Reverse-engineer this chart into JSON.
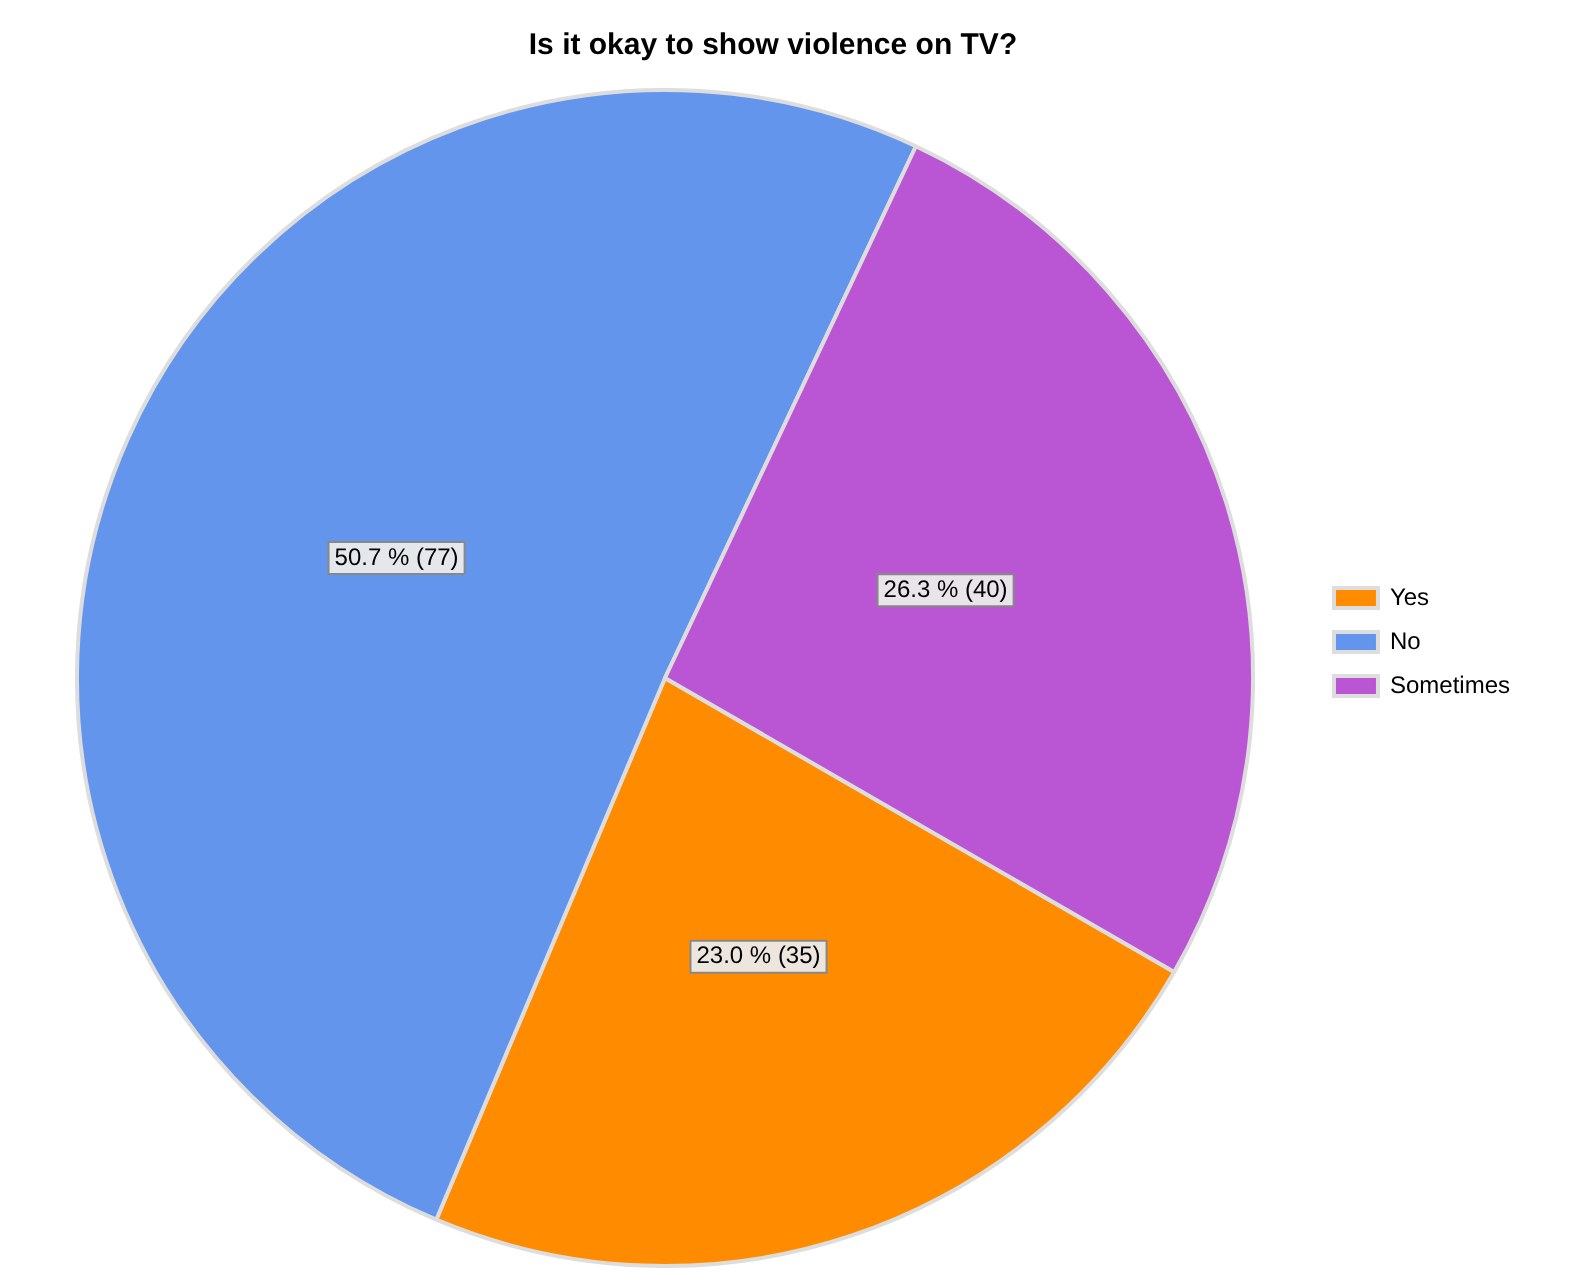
{
  "chart_data": {
    "type": "pie",
    "title": "Is it okay to show violence on TV?",
    "categories": [
      "Yes",
      "No",
      "Sometimes"
    ],
    "values": [
      35,
      77,
      40
    ],
    "colors": [
      "#ff8c00",
      "#6495ed",
      "#ba55d3"
    ],
    "value_labels": [
      "23.0 % (35)",
      "50.7 % (77)",
      "26.3 % (40)"
    ],
    "legend": "right"
  }
}
